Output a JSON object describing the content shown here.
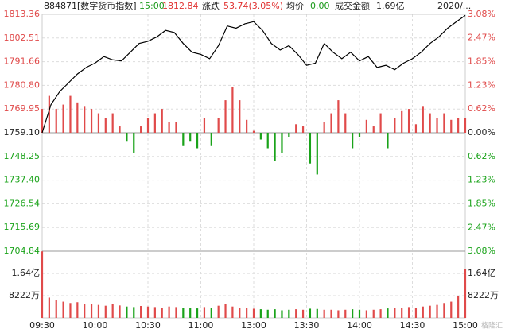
{
  "header": {
    "code": "884871[数字货币指数]",
    "time": "15:00",
    "price": "1812.84",
    "change_label": "涨跌",
    "change": "53.74(3.05%)",
    "avg_label": "均价",
    "avg": "0.00",
    "amount_label": "成交金额",
    "amount": "1.69亿",
    "date": "2020/..."
  },
  "watermark": "格隆汇",
  "chart_data": [
    {
      "type": "line",
      "color": "#000000",
      "grid": true,
      "xlim": [
        0,
        240
      ],
      "xticks": [
        {
          "value": 0,
          "label": "09:30"
        },
        {
          "value": 30,
          "label": "10:00"
        },
        {
          "value": 60,
          "label": "10:30"
        },
        {
          "value": 90,
          "label": "11:00"
        },
        {
          "value": 120,
          "label": "13:00"
        },
        {
          "value": 150,
          "label": "13:30"
        },
        {
          "value": 180,
          "label": "14:00"
        },
        {
          "value": 210,
          "label": "14:30"
        },
        {
          "value": 240,
          "label": "15:00"
        }
      ],
      "ylim": [
        1704.84,
        1813.36
      ],
      "yticks": [
        {
          "value": 1813.36,
          "label": "1813.36"
        },
        {
          "value": 1802.51,
          "label": "1802.51"
        },
        {
          "value": 1791.66,
          "label": "1791.66"
        },
        {
          "value": 1780.8,
          "label": "1780.80"
        },
        {
          "value": 1769.95,
          "label": "1769.95"
        },
        {
          "value": 1759.1,
          "label": "1759.10"
        },
        {
          "value": 1748.25,
          "label": "1748.25"
        },
        {
          "value": 1737.4,
          "label": "1737.40"
        },
        {
          "value": 1726.54,
          "label": "1726.54"
        },
        {
          "value": 1715.69,
          "label": "1715.69"
        },
        {
          "value": 1704.84,
          "label": "1704.84"
        }
      ],
      "y2lim": [
        -3.08,
        3.08
      ],
      "y2ticks": [
        {
          "value": 3.08,
          "label": "3.08%"
        },
        {
          "value": 2.47,
          "label": "2.47%"
        },
        {
          "value": 1.85,
          "label": "1.85%"
        },
        {
          "value": 1.23,
          "label": "1.23%"
        },
        {
          "value": 0.62,
          "label": "0.62%"
        },
        {
          "value": 0,
          "label": "0.00%"
        },
        {
          "value": -0.62,
          "label": "0.62%"
        },
        {
          "value": -1.23,
          "label": "1.23%"
        },
        {
          "value": -1.85,
          "label": "1.85%"
        },
        {
          "value": -2.47,
          "label": "2.47%"
        },
        {
          "value": -3.08,
          "label": "3.08%"
        }
      ],
      "x": [
        0,
        5,
        10,
        15,
        20,
        25,
        30,
        35,
        40,
        45,
        50,
        55,
        60,
        65,
        70,
        75,
        80,
        85,
        90,
        95,
        100,
        105,
        110,
        115,
        120,
        125,
        130,
        135,
        140,
        145,
        150,
        155,
        160,
        165,
        170,
        175,
        180,
        185,
        190,
        195,
        200,
        205,
        210,
        215,
        220,
        225,
        230,
        235,
        240
      ],
      "values": [
        1759.1,
        1772,
        1778,
        1782,
        1786,
        1789,
        1791,
        1794,
        1792.5,
        1792,
        1796,
        1800,
        1801,
        1803,
        1806,
        1805,
        1800,
        1796,
        1795,
        1793,
        1799,
        1808,
        1807,
        1809,
        1810,
        1806,
        1800,
        1797,
        1799,
        1795,
        1790,
        1791,
        1800,
        1796,
        1793,
        1796,
        1792,
        1794,
        1789,
        1790,
        1788,
        1791,
        1793,
        1796,
        1800,
        1803,
        1807,
        1810,
        1812.84
      ]
    },
    {
      "type": "bar",
      "up_color": "#e04a4a",
      "down_color": "#1aa31a",
      "xlim": [
        0,
        240
      ],
      "ylim": [
        1704.84,
        1813.36
      ],
      "x": [
        0,
        4,
        8,
        12,
        16,
        20,
        24,
        28,
        32,
        36,
        40,
        44,
        48,
        52,
        56,
        60,
        64,
        68,
        72,
        76,
        80,
        84,
        88,
        92,
        96,
        100,
        104,
        108,
        112,
        116,
        120,
        124,
        128,
        132,
        136,
        140,
        144,
        148,
        152,
        156,
        160,
        164,
        168,
        172,
        176,
        180,
        184,
        188,
        192,
        196,
        200,
        204,
        208,
        212,
        216,
        220,
        224,
        228,
        232,
        236,
        240
      ],
      "values": [
        1770,
        1776,
        1770,
        1772,
        1776,
        1773,
        1771,
        1770,
        1768,
        1766,
        1768,
        1762,
        1755,
        1750,
        1762,
        1766,
        1768,
        1770,
        1764,
        1764,
        1753,
        1755,
        1752,
        1766,
        1753,
        1766,
        1774,
        1780,
        1774,
        1765,
        1760,
        1756,
        1752,
        1746,
        1750,
        1757,
        1763,
        1762,
        1745,
        1740,
        1764,
        1768,
        1774,
        1768,
        1752,
        1757,
        1765,
        1762,
        1768,
        1752,
        1766,
        1769,
        1770,
        1763,
        1771,
        1768,
        1766,
        1768,
        1765,
        1766,
        1766
      ]
    },
    {
      "type": "bar",
      "color": "#e04a4a",
      "xlim": [
        0,
        240
      ],
      "ylim": [
        0,
        246660000
      ],
      "yticks": [
        {
          "value": 164000000,
          "label": "1.64亿"
        },
        {
          "value": 82220000,
          "label": "8222万"
        }
      ],
      "x": [
        0,
        4,
        8,
        12,
        16,
        20,
        24,
        28,
        32,
        36,
        40,
        44,
        48,
        52,
        56,
        60,
        64,
        68,
        72,
        76,
        80,
        84,
        88,
        92,
        96,
        100,
        104,
        108,
        112,
        116,
        120,
        124,
        128,
        132,
        136,
        140,
        144,
        148,
        152,
        156,
        160,
        164,
        168,
        172,
        176,
        180,
        184,
        188,
        192,
        196,
        200,
        204,
        208,
        212,
        216,
        220,
        224,
        228,
        232,
        236,
        240
      ],
      "values": [
        246000000,
        75000000,
        65000000,
        60000000,
        55000000,
        58000000,
        52000000,
        50000000,
        48000000,
        45000000,
        50000000,
        46000000,
        42000000,
        40000000,
        44000000,
        42000000,
        40000000,
        38000000,
        42000000,
        40000000,
        36000000,
        38000000,
        35000000,
        40000000,
        38000000,
        45000000,
        50000000,
        42000000,
        38000000,
        36000000,
        34000000,
        32000000,
        30000000,
        32000000,
        28000000,
        30000000,
        32000000,
        30000000,
        34000000,
        33000000,
        30000000,
        30000000,
        28000000,
        30000000,
        32000000,
        30000000,
        28000000,
        30000000,
        32000000,
        35000000,
        38000000,
        36000000,
        40000000,
        38000000,
        42000000,
        45000000,
        48000000,
        55000000,
        60000000,
        80000000,
        180000000
      ]
    }
  ]
}
